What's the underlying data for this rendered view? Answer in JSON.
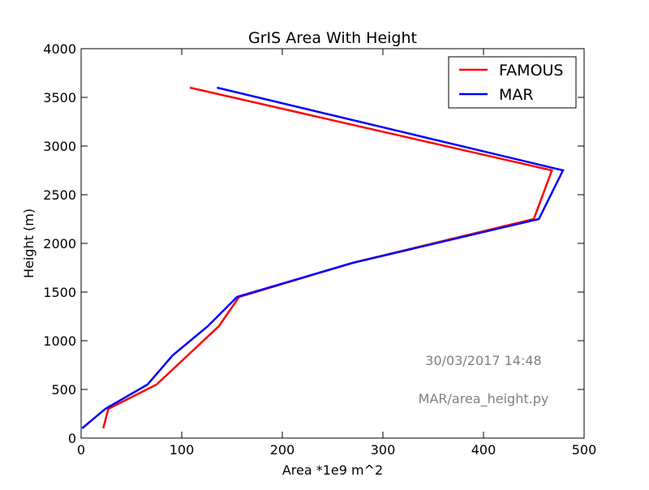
{
  "chart_data": {
    "type": "line",
    "title": "GrIS Area With Height",
    "xlabel": "Area *1e9 m^2",
    "ylabel": "Height (m)",
    "xlim": [
      0,
      500
    ],
    "ylim": [
      0,
      4000
    ],
    "xticks": [
      0,
      100,
      200,
      300,
      400,
      500
    ],
    "yticks": [
      0,
      500,
      1000,
      1500,
      2000,
      2500,
      3000,
      3500,
      4000
    ],
    "grid": false,
    "legend_position": "top-right",
    "series": [
      {
        "name": "FAMOUS",
        "color": "#ff0000",
        "x": [
          22,
          27,
          75,
          137,
          157,
          270,
          450,
          468,
          108
        ],
        "y": [
          100,
          300,
          550,
          1150,
          1450,
          1800,
          2250,
          2750,
          3600
        ]
      },
      {
        "name": "MAR",
        "color": "#0000ff",
        "x": [
          1,
          24,
          66,
          91,
          126,
          155,
          270,
          455,
          479,
          135
        ],
        "y": [
          100,
          300,
          550,
          850,
          1150,
          1450,
          1800,
          2250,
          2750,
          3600
        ]
      }
    ],
    "annotations": [
      "30/03/2017 14:48",
      "MAR/area_height.py"
    ]
  }
}
